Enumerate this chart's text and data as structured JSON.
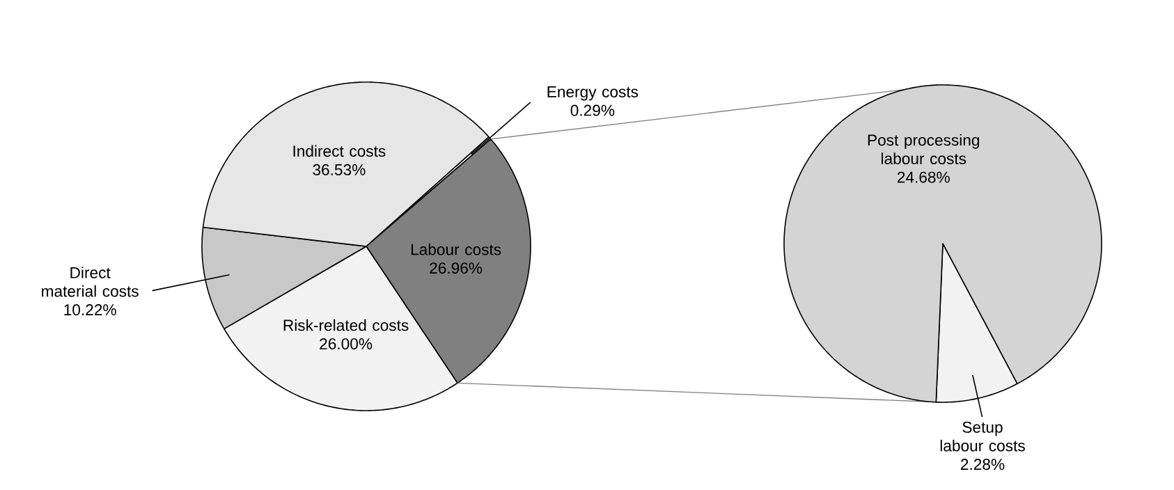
{
  "chart_data": [
    {
      "type": "pie",
      "categories": [
        "Energy costs",
        "Labour costs",
        "Risk-related costs",
        "Direct material costs",
        "Indirect costs"
      ],
      "values": [
        0.29,
        26.96,
        26.0,
        10.22,
        36.53
      ],
      "value_labels": [
        "0.29%",
        "26.96%",
        "26.00%",
        "10.22%",
        "36.53%"
      ],
      "colors": [
        "#ffffff",
        "#808080",
        "#f2f2f2",
        "#c8c8c8",
        "#e6e6e6"
      ]
    },
    {
      "type": "pie",
      "categories": [
        "Setup labour costs",
        "Post processing labour costs"
      ],
      "values": [
        2.28,
        24.68
      ],
      "value_labels": [
        "2.28%",
        "24.68%"
      ],
      "colors": [
        "#f2f2f2",
        "#d4d4d4"
      ]
    }
  ]
}
